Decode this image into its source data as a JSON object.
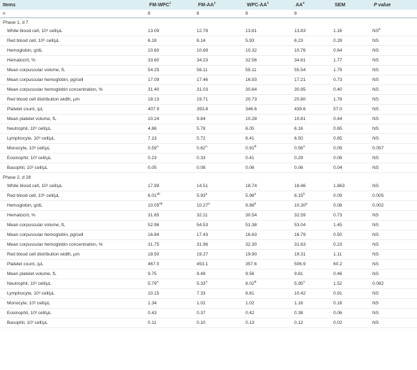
{
  "header": {
    "items": "Items",
    "col1": "FM-WPC",
    "col1_sup": "1",
    "col2": "FM-AA",
    "col2_sup": "2",
    "col3": "WPC-AA",
    "col3_sup": "3",
    "col4": "AA",
    "col4_sup": "4",
    "col5": "SEM",
    "col6": "P value"
  },
  "n_row": {
    "label": "n",
    "values": [
      "8",
      "8",
      "8",
      "8"
    ]
  },
  "phase1": {
    "title": "Phase 1, d 7",
    "rows": [
      {
        "label": "White blood cell, 10³ cell/μL",
        "v": [
          "13.09",
          "12.78",
          "13.81",
          "13.83"
        ],
        "s": [
          "",
          "",
          "",
          ""
        ],
        "sem": "1.16",
        "p": "NS",
        "p_sup": "5"
      },
      {
        "label": "Red blood cell, 10⁶ cell/μL",
        "v": [
          "6.18",
          "6.14",
          "5.93",
          "6.23"
        ],
        "s": [
          "",
          "",
          "",
          ""
        ],
        "sem": "0.28",
        "p": "NS",
        "p_sup": ""
      },
      {
        "label": "Hemoglobin, g/dL",
        "v": [
          "10.60",
          "10.69",
          "10.32",
          "10.76"
        ],
        "s": [
          "",
          "",
          "",
          ""
        ],
        "sem": "0.64",
        "p": "NS",
        "p_sup": ""
      },
      {
        "label": "Hematocrit, %",
        "v": [
          "33.60",
          "34.23",
          "32.56",
          "34.61"
        ],
        "s": [
          "",
          "",
          "",
          ""
        ],
        "sem": "1.77",
        "p": "NS",
        "p_sup": ""
      },
      {
        "label": "Mean corpuscular volume, fL",
        "v": [
          "54.25",
          "56.11",
          "55.11",
          "55.54"
        ],
        "s": [
          "",
          "",
          "",
          ""
        ],
        "sem": "1.79",
        "p": "NS",
        "p_sup": ""
      },
      {
        "label": "Mean corpuscular hemoglobin, pg/cell",
        "v": [
          "17.09",
          "17.46",
          "16.93",
          "17.21"
        ],
        "s": [
          "",
          "",
          "",
          ""
        ],
        "sem": "0.73",
        "p": "NS",
        "p_sup": ""
      },
      {
        "label": "Mean corpuscular hemoglobin concentration, %",
        "v": [
          "31.40",
          "31.03",
          "30.64",
          "30.95"
        ],
        "s": [
          "",
          "",
          "",
          ""
        ],
        "sem": "0.40",
        "p": "NS",
        "p_sup": ""
      },
      {
        "label": "Red blood cell distribution width, μm",
        "v": [
          "18.13",
          "19.71",
          "20.73",
          "20.80"
        ],
        "s": [
          "",
          "",
          "",
          ""
        ],
        "sem": "1.78",
        "p": "NS",
        "p_sup": ""
      },
      {
        "label": "Platelet count, /μL",
        "v": [
          "407.9",
          "393.8",
          "346.6",
          "439.6"
        ],
        "s": [
          "",
          "",
          "",
          ""
        ],
        "sem": "57.0",
        "p": "NS",
        "p_sup": ""
      },
      {
        "label": "Mean platelet volume, fL",
        "v": [
          "10.24",
          "9.84",
          "10.28",
          "10.61"
        ],
        "s": [
          "",
          "",
          "",
          ""
        ],
        "sem": "0.44",
        "p": "NS",
        "p_sup": ""
      },
      {
        "label": "Neutrophil, 10³ cell/μL",
        "v": [
          "4.86",
          "5.78",
          "6.05",
          "6.16"
        ],
        "s": [
          "",
          "",
          "",
          ""
        ],
        "sem": "0.65",
        "p": "NS",
        "p_sup": ""
      },
      {
        "label": "Lymphocyte, 10³ cell/μL",
        "v": [
          "7.13",
          "5.72",
          "6.41",
          "6.50"
        ],
        "s": [
          "",
          "",
          "",
          ""
        ],
        "sem": "0.65",
        "p": "NS",
        "p_sup": ""
      },
      {
        "label": "Monocyte, 10³ cell/μL",
        "v": [
          "0.59",
          "0.62",
          "0.91",
          "0.56"
        ],
        "s": [
          "A",
          "A",
          "B",
          "A"
        ],
        "sem": "0.09",
        "p": "0.057",
        "p_sup": ""
      },
      {
        "label": "Eosinophil, 10³ cell/μL",
        "v": [
          "0.23",
          "0.33",
          "0.41",
          "0.29"
        ],
        "s": [
          "",
          "",
          "",
          ""
        ],
        "sem": "0.08",
        "p": "NS",
        "p_sup": ""
      },
      {
        "label": "Basophil, 10³ cell/μL",
        "v": [
          "0.05",
          "0.08",
          "0.06",
          "0.06"
        ],
        "s": [
          "",
          "",
          "",
          ""
        ],
        "sem": "0.04",
        "p": "NS",
        "p_sup": ""
      }
    ]
  },
  "phase2": {
    "title": "Phase 2, d 28",
    "rows": [
      {
        "label": "White blood cell, 10³ cell/μL",
        "v": [
          "17.99",
          "14.51",
          "18.74",
          "18.46"
        ],
        "s": [
          "",
          "",
          "",
          ""
        ],
        "sem": "1.863",
        "p": "NS",
        "p_sup": ""
      },
      {
        "label": "Red blood cell, 10⁶ cell/μL",
        "v": [
          "6.01",
          "5.93",
          "5.96",
          "6.15"
        ],
        "s": [
          "ab",
          "a",
          "a",
          "b"
        ],
        "sem": "0.09",
        "p": "0.005",
        "p_sup": ""
      },
      {
        "label": "Hemoglobin, g/dL",
        "v": [
          "10.05",
          "10.27",
          "9.88",
          "10.30"
        ],
        "s": [
          "ab",
          "a",
          "b",
          "a"
        ],
        "sem": "0.08",
        "p": "0.002",
        "p_sup": ""
      },
      {
        "label": "Hematocrit, %",
        "v": [
          "31.65",
          "32.11",
          "30.54",
          "32.59"
        ],
        "s": [
          "",
          "",
          "",
          ""
        ],
        "sem": "0.73",
        "p": "NS",
        "p_sup": ""
      },
      {
        "label": "Mean corpuscular volume, fL",
        "v": [
          "52.96",
          "54.53",
          "51.38",
          "53.04"
        ],
        "s": [
          "",
          "",
          "",
          ""
        ],
        "sem": "1.45",
        "p": "NS",
        "p_sup": ""
      },
      {
        "label": "Mean corpuscular hemoglobin, pg/cell",
        "v": [
          "16.84",
          "17.43",
          "16.63",
          "16.79"
        ],
        "s": [
          "",
          "",
          "",
          ""
        ],
        "sem": "0.50",
        "p": "NS",
        "p_sup": ""
      },
      {
        "label": "Mean corpuscular hemoglobin concentration, %",
        "v": [
          "31.75",
          "31.96",
          "32.30",
          "31.63"
        ],
        "s": [
          "",
          "",
          "",
          ""
        ],
        "sem": "0.23",
        "p": "NS",
        "p_sup": ""
      },
      {
        "label": "Red blood cell distribution width, μm",
        "v": [
          "18.50",
          "19.27",
          "19.90",
          "19.31"
        ],
        "s": [
          "",
          "",
          "",
          ""
        ],
        "sem": "1.11",
        "p": "NS",
        "p_sup": ""
      },
      {
        "label": "Platelet count, /μL",
        "v": [
          "467.0",
          "453.1",
          "357.6",
          "506.9"
        ],
        "s": [
          "",
          "",
          "",
          ""
        ],
        "sem": "60.2",
        "p": "NS",
        "p_sup": ""
      },
      {
        "label": "Mean platelet volume, fL",
        "v": [
          "9.75",
          "9.49",
          "9.56",
          "9.81"
        ],
        "s": [
          "",
          "",
          "",
          ""
        ],
        "sem": "0.46",
        "p": "NS",
        "p_sup": ""
      },
      {
        "label": "Neutrophil, 10³ cell/μL",
        "v": [
          "5.79",
          "5.33",
          "8.02",
          "5.95"
        ],
        "s": [
          "A",
          "A",
          "B",
          "A"
        ],
        "sem": "1.52",
        "p": "0.082",
        "p_sup": ""
      },
      {
        "label": "Lymphocyte, 10³ cell/μL",
        "v": [
          "10.15",
          "7.33",
          "8.61",
          "10.42"
        ],
        "s": [
          "",
          "",
          "",
          ""
        ],
        "sem": "0.91",
        "p": "NS",
        "p_sup": ""
      },
      {
        "label": "Monocyte, 10³ cell/μL",
        "v": [
          "1.34",
          "1.02",
          "1.02",
          "1.16"
        ],
        "s": [
          "",
          "",
          "",
          ""
        ],
        "sem": "0.18",
        "p": "NS",
        "p_sup": ""
      },
      {
        "label": "Eosinophil, 10³ cell/μL",
        "v": [
          "0.43",
          "0.37",
          "0.42",
          "0.38"
        ],
        "s": [
          "",
          "",
          "",
          ""
        ],
        "sem": "0.06",
        "p": "NS",
        "p_sup": ""
      },
      {
        "label": "Basophil, 10³ cell/μL",
        "v": [
          "0.11",
          "0.10",
          "0.13",
          "0.12"
        ],
        "s": [
          "",
          "",
          "",
          ""
        ],
        "sem": "0.02",
        "p": "NS",
        "p_sup": ""
      }
    ]
  }
}
